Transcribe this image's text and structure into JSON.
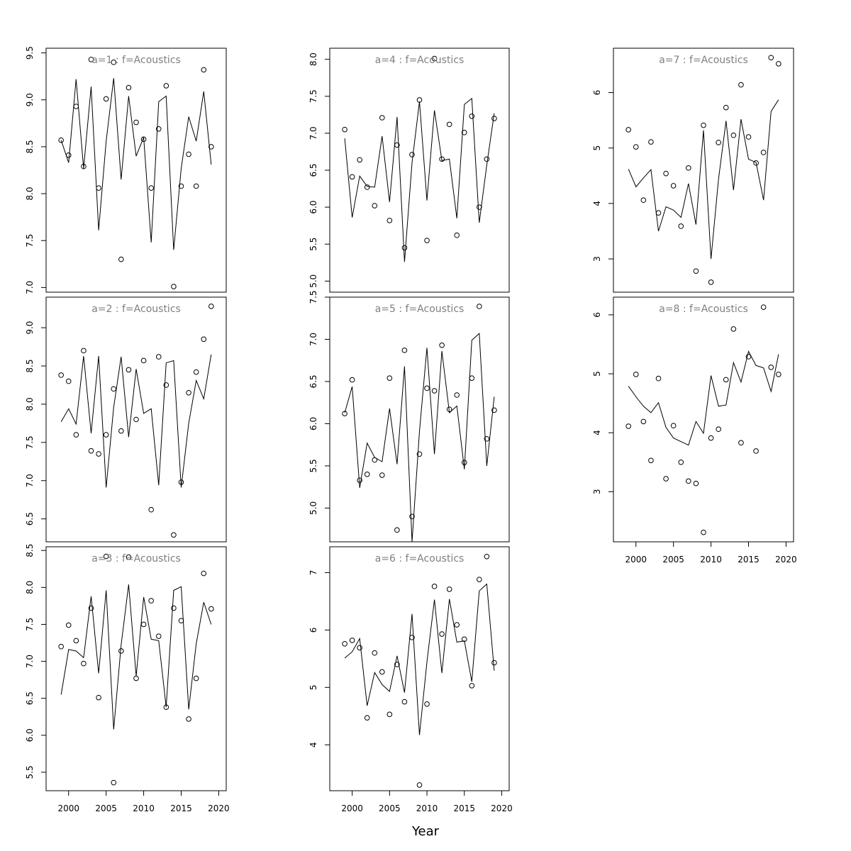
{
  "chart_data": {
    "type": "line",
    "layout": "lattice",
    "xlabel": "Year",
    "xticks": [
      2000,
      2005,
      2010,
      2015,
      2020
    ],
    "xlim": [
      1997,
      2021
    ],
    "years": [
      1999,
      2000,
      2001,
      2002,
      2003,
      2004,
      2005,
      2006,
      2007,
      2008,
      2009,
      2010,
      2011,
      2012,
      2013,
      2014,
      2015,
      2016,
      2017,
      2018,
      2019
    ],
    "panels": [
      {
        "title": "a=1  :  f=Acoustics",
        "yticks": [
          7.0,
          7.5,
          8.0,
          8.5,
          9.0,
          9.5
        ],
        "ytick_labels": [
          "7.0",
          "7.5",
          "8.0",
          "8.5",
          "9.0",
          "9.5"
        ],
        "ylim": [
          6.95,
          9.55
        ],
        "line": [
          8.57,
          8.33,
          9.22,
          8.27,
          9.14,
          7.61,
          8.56,
          9.23,
          8.15,
          9.04,
          8.4,
          8.6,
          7.48,
          8.98,
          9.04,
          7.4,
          8.27,
          8.82,
          8.56,
          9.09,
          8.31
        ],
        "points": [
          8.57,
          8.41,
          8.93,
          8.29,
          9.43,
          8.06,
          9.01,
          9.4,
          7.3,
          9.13,
          8.76,
          8.58,
          8.06,
          8.69,
          9.15,
          7.01,
          8.08,
          8.42,
          8.08,
          9.32,
          8.5
        ]
      },
      {
        "title": "a=2  :  f=Acoustics",
        "yticks": [
          6.5,
          7.0,
          7.5,
          8.0,
          8.5,
          9.0
        ],
        "ytick_labels": [
          "6.5",
          "7.0",
          "7.5",
          "8.0",
          "8.5",
          "9.0"
        ],
        "ylim": [
          6.2,
          9.4
        ],
        "line": [
          7.77,
          7.94,
          7.74,
          8.63,
          7.62,
          8.63,
          6.91,
          7.96,
          8.62,
          7.57,
          8.46,
          7.88,
          7.94,
          6.94,
          8.54,
          8.57,
          6.91,
          7.75,
          8.31,
          8.07,
          8.65
        ],
        "points": [
          8.38,
          8.3,
          7.6,
          8.7,
          7.39,
          7.35,
          7.6,
          8.2,
          7.65,
          8.45,
          7.8,
          8.57,
          6.62,
          8.62,
          8.25,
          6.29,
          6.98,
          8.15,
          8.42,
          8.85,
          9.28
        ]
      },
      {
        "title": "a=3  :  f=Acoustics",
        "yticks": [
          5.5,
          6.0,
          6.5,
          7.0,
          7.5,
          8.0,
          8.5
        ],
        "ytick_labels": [
          "5.5",
          "6.0",
          "6.5",
          "7.0",
          "7.5",
          "8.0",
          "8.5"
        ],
        "ylim": [
          5.25,
          8.55
        ],
        "line": [
          6.55,
          7.16,
          7.14,
          7.05,
          7.88,
          6.84,
          7.96,
          6.08,
          7.22,
          8.04,
          6.8,
          7.87,
          7.3,
          7.28,
          6.38,
          7.96,
          8.01,
          6.35,
          7.24,
          7.8,
          7.5
        ],
        "points": [
          7.2,
          7.49,
          7.28,
          6.97,
          7.72,
          6.51,
          8.42,
          5.36,
          7.14,
          8.41,
          6.77,
          7.5,
          7.82,
          7.34,
          6.38,
          7.72,
          7.55,
          6.22,
          6.77,
          8.19,
          7.71
        ]
      },
      {
        "title": "a=4  :  f=Acoustics",
        "yticks": [
          5.0,
          5.5,
          6.0,
          6.5,
          7.0,
          7.5,
          8.0
        ],
        "ytick_labels": [
          "5.0",
          "5.5",
          "6.0",
          "6.5",
          "7.0",
          "7.5",
          "8.0"
        ],
        "ylim": [
          4.85,
          8.15
        ],
        "line": [
          6.93,
          5.86,
          6.42,
          6.28,
          6.27,
          6.96,
          6.07,
          7.22,
          5.26,
          6.6,
          7.43,
          6.09,
          7.31,
          6.63,
          6.65,
          5.85,
          7.39,
          7.47,
          5.79,
          6.57,
          7.27
        ],
        "points": [
          7.05,
          6.41,
          6.64,
          6.27,
          6.02,
          7.21,
          5.82,
          6.84,
          5.45,
          6.71,
          7.45,
          5.55,
          8.01,
          6.65,
          7.12,
          5.62,
          7.01,
          7.23,
          6.0,
          6.65,
          7.2
        ]
      },
      {
        "title": "a=5  :  f=Acoustics",
        "yticks": [
          5.0,
          5.5,
          6.0,
          6.5,
          7.0,
          7.5
        ],
        "ytick_labels": [
          "5.0",
          "5.5",
          "6.0",
          "6.5",
          "7.0",
          "7.5"
        ],
        "ylim": [
          4.6,
          7.5
        ],
        "line": [
          6.13,
          6.44,
          5.24,
          5.77,
          5.6,
          5.55,
          6.18,
          5.52,
          6.68,
          4.6,
          5.91,
          6.9,
          5.64,
          6.86,
          6.13,
          6.21,
          5.46,
          6.99,
          7.07,
          5.5,
          6.32
        ],
        "points": [
          6.12,
          6.52,
          5.33,
          5.4,
          5.57,
          5.39,
          6.54,
          4.74,
          6.87,
          4.9,
          5.64,
          6.42,
          6.39,
          6.93,
          6.17,
          6.34,
          5.54,
          6.54,
          7.39,
          5.82,
          6.16
        ]
      },
      {
        "title": "a=6  :  f=Acoustics",
        "yticks": [
          4,
          5,
          6,
          7
        ],
        "ytick_labels": [
          "4",
          "5",
          "6",
          "7"
        ],
        "ylim": [
          3.2,
          7.45
        ],
        "line": [
          5.51,
          5.62,
          5.85,
          4.68,
          5.26,
          5.05,
          4.93,
          5.55,
          4.91,
          6.28,
          4.17,
          5.44,
          6.53,
          5.25,
          6.54,
          5.79,
          5.81,
          5.1,
          6.68,
          6.8,
          5.29
        ],
        "points": [
          5.76,
          5.82,
          5.69,
          4.47,
          5.6,
          5.27,
          4.53,
          5.4,
          4.75,
          5.87,
          3.3,
          4.71,
          6.76,
          5.93,
          6.71,
          6.09,
          5.84,
          5.03,
          6.88,
          7.28,
          5.43
        ]
      },
      {
        "title": "a=7  :  f=Acoustics",
        "yticks": [
          3,
          4,
          5,
          6
        ],
        "ytick_labels": [
          "3",
          "4",
          "5",
          "6"
        ],
        "ylim": [
          2.4,
          6.8
        ],
        "line": [
          4.62,
          4.3,
          4.46,
          4.61,
          3.5,
          3.94,
          3.88,
          3.75,
          4.36,
          3.62,
          5.32,
          3.0,
          4.44,
          5.49,
          4.24,
          5.52,
          4.8,
          4.74,
          4.06,
          5.66,
          5.87
        ],
        "points": [
          5.33,
          5.02,
          4.06,
          5.11,
          3.83,
          4.54,
          4.32,
          3.59,
          4.64,
          2.78,
          5.41,
          2.58,
          5.1,
          5.73,
          5.23,
          6.14,
          5.2,
          4.73,
          4.92,
          6.63,
          6.52
        ]
      },
      {
        "title": "a=8  :  f=Acoustics",
        "yticks": [
          3,
          4,
          5,
          6
        ],
        "ytick_labels": [
          "3",
          "4",
          "5",
          "6"
        ],
        "ylim": [
          2.15,
          6.3
        ],
        "line": [
          4.79,
          4.61,
          4.45,
          4.34,
          4.51,
          4.09,
          3.91,
          3.85,
          3.79,
          4.19,
          3.99,
          4.97,
          4.45,
          4.47,
          5.19,
          4.86,
          5.38,
          5.14,
          5.1,
          4.7,
          5.33
        ],
        "points": [
          4.11,
          4.99,
          4.19,
          3.53,
          4.92,
          3.22,
          4.12,
          3.5,
          3.18,
          3.14,
          2.31,
          3.91,
          4.06,
          4.9,
          5.76,
          3.83,
          5.29,
          3.69,
          6.13,
          5.11,
          4.99
        ]
      }
    ]
  }
}
